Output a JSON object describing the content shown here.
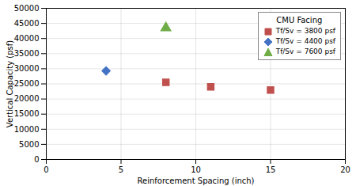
{
  "chart_data": {
    "type": "scatter",
    "xlabel": "Reinforcement Spacing (inch)",
    "ylabel": "Vertical Capacity (psf)",
    "xlim": [
      0,
      20
    ],
    "ylim": [
      0,
      50000
    ],
    "xticks": [
      0,
      5,
      10,
      15,
      20
    ],
    "yticks": [
      0,
      5000,
      10000,
      15000,
      20000,
      25000,
      30000,
      35000,
      40000,
      45000,
      50000
    ],
    "grid": true,
    "legend": "upper right",
    "legend_title": "CMU Facing",
    "series": [
      {
        "name": "Tf/Sv = 3800 psf",
        "color": "#C0504D",
        "marker": "square",
        "x": [
          8,
          11,
          15
        ],
        "values": [
          25500,
          24000,
          23000
        ]
      },
      {
        "name": "Tf/Sv = 4400 psf",
        "color": "#4472C4",
        "marker": "diamond",
        "x": [
          4
        ],
        "values": [
          29300
        ]
      },
      {
        "name": "Tf/Sv = 7600 psf",
        "color": "#70AD47",
        "marker": "triangle",
        "x": [
          8
        ],
        "values": [
          43500
        ]
      }
    ]
  }
}
